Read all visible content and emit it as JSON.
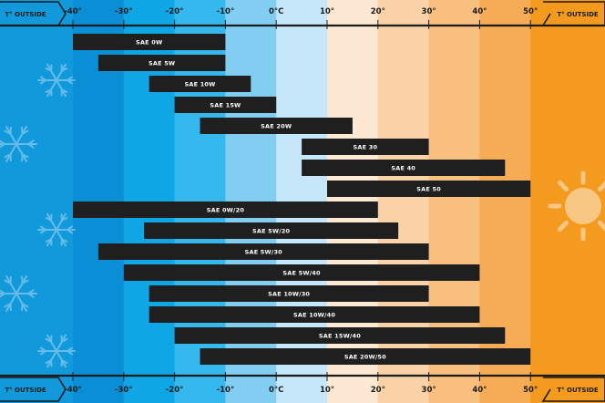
{
  "chart_data": {
    "type": "bar",
    "orientation": "horizontal-range",
    "axis_caption_left": "T° OUTSIDE",
    "axis_caption_right": "T° OUTSIDE",
    "xlim": [
      -50,
      60
    ],
    "x_ticks": [
      {
        "value": -40,
        "label": "-40°"
      },
      {
        "value": -30,
        "label": "-30°"
      },
      {
        "value": -20,
        "label": "-20°"
      },
      {
        "value": -10,
        "label": "-10°"
      },
      {
        "value": 0,
        "label": "0°C"
      },
      {
        "value": 10,
        "label": "10°"
      },
      {
        "value": 20,
        "label": "20°"
      },
      {
        "value": 30,
        "label": "30°"
      },
      {
        "value": 40,
        "label": "40°"
      },
      {
        "value": 50,
        "label": "50°"
      }
    ],
    "band_colors": [
      "#1299dc",
      "#0a8fd6",
      "#0ea6e4",
      "#35b8ee",
      "#82cef3",
      "#c6e7fa",
      "#fde8d4",
      "#fbd2a6",
      "#f9bf7e",
      "#f6ab55",
      "#f39a1f",
      "#f4ab52"
    ],
    "bar_color": "#1f1f1f",
    "icons": [
      "snowflake-icon",
      "sun-icon"
    ],
    "ranges": [
      {
        "name": "SAE 0W",
        "min": -40,
        "max": -10
      },
      {
        "name": "SAE 5W",
        "min": -35,
        "max": -10
      },
      {
        "name": "SAE 10W",
        "min": -25,
        "max": -5
      },
      {
        "name": "SAE 15W",
        "min": -20,
        "max": 0
      },
      {
        "name": "SAE 20W",
        "min": -15,
        "max": 15
      },
      {
        "name": "SAE 30",
        "min": 5,
        "max": 30
      },
      {
        "name": "SAE 40",
        "min": 5,
        "max": 45
      },
      {
        "name": "SAE 50",
        "min": 10,
        "max": 50
      },
      {
        "name": "SAE 0W/20",
        "min": -40,
        "max": 20
      },
      {
        "name": "SAE 5W/20",
        "min": -26,
        "max": 24
      },
      {
        "name": "SAE 5W/30",
        "min": -35,
        "max": 30
      },
      {
        "name": "SAE 5W/40",
        "min": -30,
        "max": 40
      },
      {
        "name": "SAE 10W/30",
        "min": -25,
        "max": 30
      },
      {
        "name": "SAE 10W/40",
        "min": -25,
        "max": 40
      },
      {
        "name": "SAE 15W/40",
        "min": -20,
        "max": 45
      },
      {
        "name": "SAE 20W/50",
        "min": -15,
        "max": 50
      }
    ]
  }
}
